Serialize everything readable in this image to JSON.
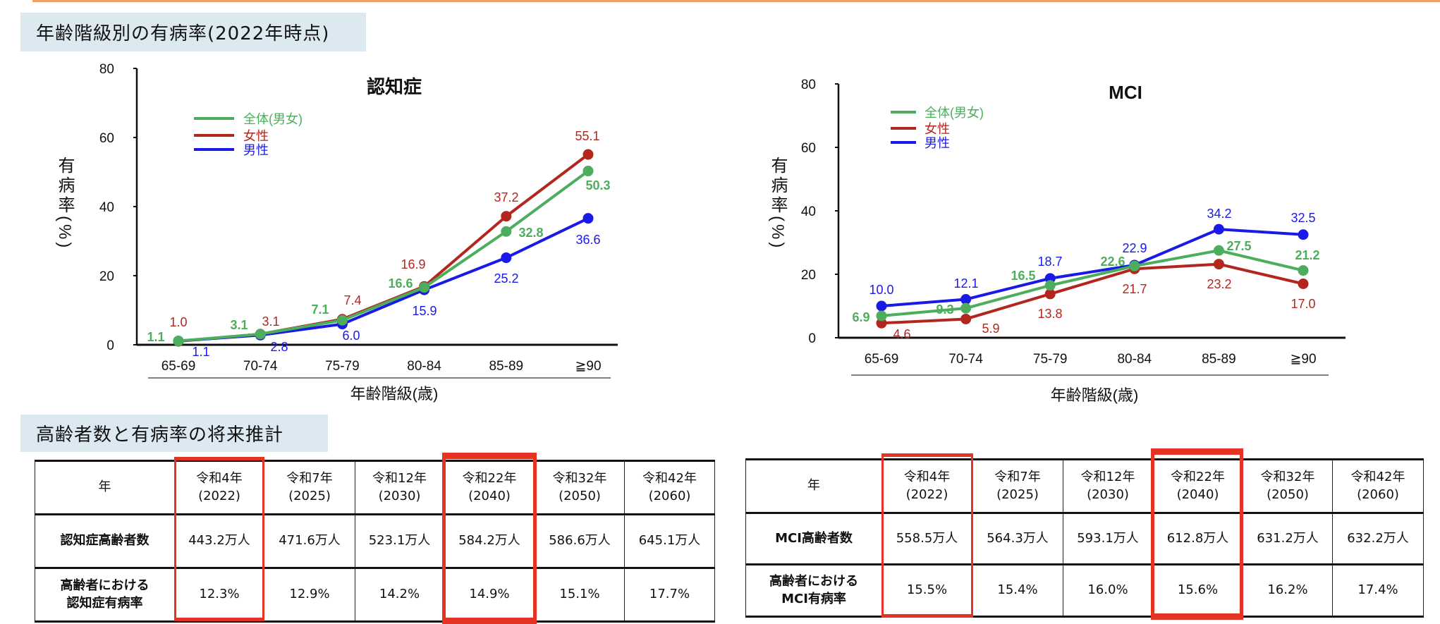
{
  "section_titles": {
    "prevalence": "年齢階級別の有病率(2022年時点)",
    "projection": "高齢者数と有病率の将来推計"
  },
  "colors": {
    "total": "#4cae5c",
    "female": "#b3261e",
    "male": "#1a1ae6",
    "highlight": "#e43323",
    "title_bg": "#dde9f0"
  },
  "chart_data": [
    {
      "type": "line",
      "title": "認知症",
      "xlabel": "年齢階級(歳)",
      "ylabel": "有病率(%)",
      "ylim": [
        0,
        80
      ],
      "yticks": [
        "0",
        "20",
        "40",
        "60",
        "80"
      ],
      "categories": [
        "65-69",
        "70-74",
        "75-79",
        "80-84",
        "85-89",
        "≧90"
      ],
      "legend_placement": "top-left",
      "grid": false,
      "series": [
        {
          "name": "全体(男女)",
          "key": "total",
          "values": [
            1.1,
            3.1,
            7.1,
            16.6,
            32.8,
            50.3
          ],
          "labels": [
            "1.1",
            "3.1",
            "7.1",
            "16.6",
            "32.8",
            "50.3"
          ]
        },
        {
          "name": "女性",
          "key": "female",
          "values": [
            1.0,
            3.1,
            7.4,
            16.9,
            37.2,
            55.1
          ],
          "labels": [
            "1.0",
            "3.1",
            "7.4",
            "16.9",
            "37.2",
            "55.1"
          ]
        },
        {
          "name": "男性",
          "key": "male",
          "values": [
            1.1,
            2.8,
            6.0,
            15.9,
            25.2,
            36.6
          ],
          "labels": [
            "1.1",
            "2.8",
            "6.0",
            "15.9",
            "25.2",
            "36.6"
          ]
        }
      ]
    },
    {
      "type": "line",
      "title": "MCI",
      "xlabel": "年齢階級(歳)",
      "ylabel": "有病率(%)",
      "ylim": [
        0,
        80
      ],
      "yticks": [
        "0",
        "20",
        "40",
        "60",
        "80"
      ],
      "categories": [
        "65-69",
        "70-74",
        "75-79",
        "80-84",
        "85-89",
        "≧90"
      ],
      "legend_placement": "top-left",
      "grid": false,
      "series": [
        {
          "name": "全体(男女)",
          "key": "total",
          "values": [
            6.9,
            9.3,
            16.5,
            22.6,
            27.5,
            21.2
          ],
          "labels": [
            "6.9",
            "9.3",
            "16.5",
            "22.6",
            "27.5",
            "21.2"
          ]
        },
        {
          "name": "女性",
          "key": "female",
          "values": [
            4.6,
            5.9,
            13.8,
            21.7,
            23.2,
            17.0
          ],
          "labels": [
            "4.6",
            "5.9",
            "13.8",
            "21.7",
            "23.2",
            "17.0"
          ]
        },
        {
          "name": "男性",
          "key": "male",
          "values": [
            10.0,
            12.1,
            18.7,
            22.9,
            34.2,
            32.5
          ],
          "labels": [
            "10.0",
            "12.1",
            "18.7",
            "22.9",
            "34.2",
            "32.5"
          ]
        }
      ]
    }
  ],
  "tables": [
    {
      "header": [
        "年",
        "令和4年\n(2022)",
        "令和7年\n(2025)",
        "令和12年\n(2030)",
        "令和22年\n(2040)",
        "令和32年\n(2050)",
        "令和42年\n(2060)"
      ],
      "rows": [
        [
          "認知症高齢者数",
          "443.2万人",
          "471.6万人",
          "523.1万人",
          "584.2万人",
          "586.6万人",
          "645.1万人"
        ],
        [
          "高齢者における\n認知症有病率",
          "12.3%",
          "12.9%",
          "14.2%",
          "14.9%",
          "15.1%",
          "17.7%"
        ]
      ],
      "highlighted_columns": [
        "令和4年",
        "令和22年"
      ]
    },
    {
      "header": [
        "年",
        "令和4年\n(2022)",
        "令和7年\n(2025)",
        "令和12年\n(2030)",
        "令和22年\n(2040)",
        "令和32年\n(2050)",
        "令和42年\n(2060)"
      ],
      "rows": [
        [
          "MCI高齢者数",
          "558.5万人",
          "564.3万人",
          "593.1万人",
          "612.8万人",
          "631.2万人",
          "632.2万人"
        ],
        [
          "高齢者における\nMCI有病率",
          "15.5%",
          "15.4%",
          "16.0%",
          "15.6%",
          "16.2%",
          "17.4%"
        ]
      ],
      "highlighted_columns": [
        "令和4年",
        "令和22年"
      ]
    }
  ]
}
